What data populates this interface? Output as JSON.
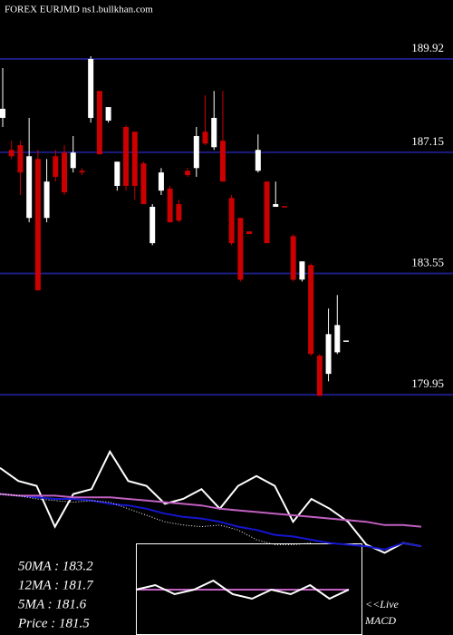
{
  "chart_data": [
    {
      "type": "candlestick",
      "title": "FOREX  EURJMD ns1.bullkhan.com",
      "open": [
        188.17,
        187.22,
        187.36,
        185.2,
        186.95,
        185.2,
        187.03,
        187.14,
        186.68,
        186.6,
        188.17,
        188.97,
        188.09,
        186.15,
        187.9,
        187.76,
        186.82,
        184.45,
        186.01,
        186.07,
        185.61,
        186.6,
        186.68,
        187.76,
        187.3,
        187.49,
        185.79,
        185.2,
        184.8,
        186.6,
        186.28,
        185.53,
        185.55,
        184.66,
        183.37,
        183.8,
        181.11,
        180.57,
        181.21,
        181.56
      ],
      "high": [
        189.65,
        187.49,
        187.49,
        188.17,
        187.22,
        186.95,
        187.22,
        187.36,
        187.63,
        186.68,
        190.0,
        188.97,
        188.49,
        186.87,
        187.95,
        187.76,
        186.87,
        185.61,
        186.68,
        186.15,
        185.74,
        186.68,
        187.9,
        188.84,
        188.97,
        188.97,
        185.88,
        185.2,
        184.8,
        187.68,
        186.28,
        186.28,
        185.55,
        184.72,
        183.91,
        183.85,
        181.16,
        182.51,
        182.91,
        181.56
      ],
      "low": [
        187.9,
        186.95,
        185.88,
        185.07,
        183.05,
        185.07,
        186.28,
        185.88,
        186.55,
        186.47,
        188.03,
        187.09,
        188.03,
        186.01,
        186.01,
        185.74,
        185.61,
        184.39,
        185.88,
        185.07,
        185.07,
        186.42,
        186.42,
        187.36,
        187.22,
        186.28,
        184.39,
        183.31,
        184.72,
        186.55,
        184.45,
        185.53,
        185.53,
        183.31,
        183.31,
        181.11,
        179.92,
        180.35,
        181.16,
        181.56
      ],
      "close": [
        188.44,
        187.03,
        186.55,
        187.03,
        183.05,
        186.28,
        186.42,
        185.96,
        187.14,
        186.55,
        189.92,
        187.09,
        188.49,
        186.87,
        186.15,
        186.15,
        185.61,
        185.53,
        186.55,
        185.07,
        185.12,
        186.47,
        187.63,
        187.41,
        188.17,
        186.28,
        184.45,
        183.37,
        184.72,
        187.22,
        184.45,
        185.61,
        185.53,
        183.37,
        183.91,
        181.16,
        179.92,
        181.75,
        182.02,
        181.56
      ],
      "up_color": "#ffffff",
      "down_color": "#cc0000",
      "grid_color": "#1c1c80",
      "ylim": [
        179.82,
        191.67
      ],
      "yticks": [
        179.95,
        183.55,
        187.15,
        189.92
      ]
    },
    {
      "type": "line",
      "ylim": [
        0,
        100
      ],
      "series": [
        {
          "color": "#ffffff",
          "dotted": false,
          "values": [
            69,
            61,
            58,
            33,
            53,
            56,
            79,
            61,
            58,
            47,
            50,
            56,
            44,
            58,
            64,
            58,
            36,
            50,
            44,
            36,
            22,
            17,
            23,
            21
          ]
        },
        {
          "color": "#1515d0",
          "dotted": false,
          "values": [
            53,
            52,
            51,
            50,
            50,
            49,
            47,
            46,
            44,
            41,
            39,
            38,
            36,
            33,
            31,
            28,
            27,
            25,
            23,
            22,
            21,
            19,
            23,
            21
          ]
        },
        {
          "color": "#c060c0",
          "dotted": false,
          "values": [
            53,
            52,
            52,
            52,
            51,
            51,
            51,
            50,
            49,
            48,
            47,
            46,
            44,
            43,
            42,
            41,
            40,
            39,
            38,
            37,
            36,
            34,
            34,
            33
          ]
        },
        {
          "color": "#ffffff",
          "dotted": true,
          "values": [
            53,
            52,
            50,
            49,
            48,
            49,
            48,
            44,
            40,
            36,
            34,
            33,
            34,
            31,
            25,
            22,
            22,
            23,
            null,
            null,
            null,
            null,
            null,
            null
          ]
        }
      ],
      "annotations": [
        "50MA : 183.2",
        "12MA : 181.7",
        "5MA : 181.6",
        "Price  : 181.5"
      ]
    },
    {
      "type": "line",
      "ylim": [
        -10,
        10
      ],
      "series": [
        {
          "color": "#c060c0",
          "dotted": false,
          "values": [
            0,
            0,
            0,
            0,
            0,
            0,
            0,
            0,
            0,
            0,
            0,
            0
          ]
        },
        {
          "color": "#ffffff",
          "dotted": false,
          "values": [
            0,
            1,
            -1,
            0,
            2,
            -1,
            -2,
            0,
            -1,
            1,
            -2,
            0
          ]
        }
      ],
      "annotations": [
        "<<Live",
        "MACD"
      ]
    }
  ]
}
